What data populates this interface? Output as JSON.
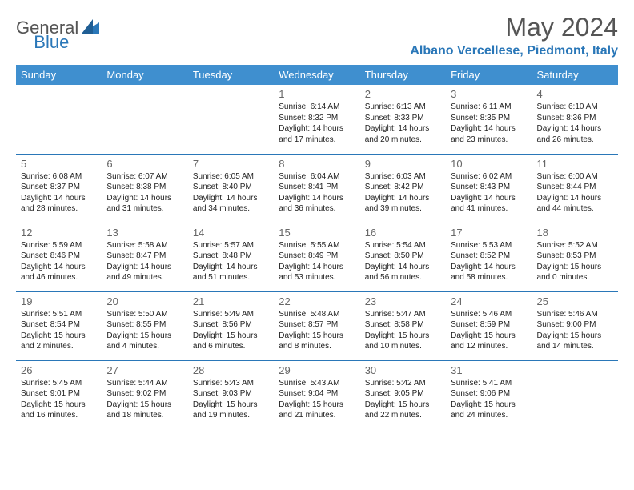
{
  "logo": {
    "word1": "General",
    "word2": "Blue"
  },
  "title": "May 2024",
  "location": "Albano Vercellese, Piedmont, Italy",
  "colors": {
    "header_bg": "#3f8fcf",
    "header_text": "#ffffff",
    "accent": "#2a77b8",
    "title_color": "#555555",
    "body_text": "#222222",
    "daynum_color": "#666666",
    "row_border": "#2a77b8",
    "background": "#ffffff"
  },
  "typography": {
    "month_title_size": 32,
    "location_size": 16,
    "weekday_size": 13,
    "daynum_size": 13,
    "body_size": 10
  },
  "weekdays": [
    "Sunday",
    "Monday",
    "Tuesday",
    "Wednesday",
    "Thursday",
    "Friday",
    "Saturday"
  ],
  "rows": [
    [
      null,
      null,
      null,
      {
        "n": "1",
        "sr": "6:14 AM",
        "ss": "8:32 PM",
        "dl": "14 hours and 17 minutes."
      },
      {
        "n": "2",
        "sr": "6:13 AM",
        "ss": "8:33 PM",
        "dl": "14 hours and 20 minutes."
      },
      {
        "n": "3",
        "sr": "6:11 AM",
        "ss": "8:35 PM",
        "dl": "14 hours and 23 minutes."
      },
      {
        "n": "4",
        "sr": "6:10 AM",
        "ss": "8:36 PM",
        "dl": "14 hours and 26 minutes."
      }
    ],
    [
      {
        "n": "5",
        "sr": "6:08 AM",
        "ss": "8:37 PM",
        "dl": "14 hours and 28 minutes."
      },
      {
        "n": "6",
        "sr": "6:07 AM",
        "ss": "8:38 PM",
        "dl": "14 hours and 31 minutes."
      },
      {
        "n": "7",
        "sr": "6:05 AM",
        "ss": "8:40 PM",
        "dl": "14 hours and 34 minutes."
      },
      {
        "n": "8",
        "sr": "6:04 AM",
        "ss": "8:41 PM",
        "dl": "14 hours and 36 minutes."
      },
      {
        "n": "9",
        "sr": "6:03 AM",
        "ss": "8:42 PM",
        "dl": "14 hours and 39 minutes."
      },
      {
        "n": "10",
        "sr": "6:02 AM",
        "ss": "8:43 PM",
        "dl": "14 hours and 41 minutes."
      },
      {
        "n": "11",
        "sr": "6:00 AM",
        "ss": "8:44 PM",
        "dl": "14 hours and 44 minutes."
      }
    ],
    [
      {
        "n": "12",
        "sr": "5:59 AM",
        "ss": "8:46 PM",
        "dl": "14 hours and 46 minutes."
      },
      {
        "n": "13",
        "sr": "5:58 AM",
        "ss": "8:47 PM",
        "dl": "14 hours and 49 minutes."
      },
      {
        "n": "14",
        "sr": "5:57 AM",
        "ss": "8:48 PM",
        "dl": "14 hours and 51 minutes."
      },
      {
        "n": "15",
        "sr": "5:55 AM",
        "ss": "8:49 PM",
        "dl": "14 hours and 53 minutes."
      },
      {
        "n": "16",
        "sr": "5:54 AM",
        "ss": "8:50 PM",
        "dl": "14 hours and 56 minutes."
      },
      {
        "n": "17",
        "sr": "5:53 AM",
        "ss": "8:52 PM",
        "dl": "14 hours and 58 minutes."
      },
      {
        "n": "18",
        "sr": "5:52 AM",
        "ss": "8:53 PM",
        "dl": "15 hours and 0 minutes."
      }
    ],
    [
      {
        "n": "19",
        "sr": "5:51 AM",
        "ss": "8:54 PM",
        "dl": "15 hours and 2 minutes."
      },
      {
        "n": "20",
        "sr": "5:50 AM",
        "ss": "8:55 PM",
        "dl": "15 hours and 4 minutes."
      },
      {
        "n": "21",
        "sr": "5:49 AM",
        "ss": "8:56 PM",
        "dl": "15 hours and 6 minutes."
      },
      {
        "n": "22",
        "sr": "5:48 AM",
        "ss": "8:57 PM",
        "dl": "15 hours and 8 minutes."
      },
      {
        "n": "23",
        "sr": "5:47 AM",
        "ss": "8:58 PM",
        "dl": "15 hours and 10 minutes."
      },
      {
        "n": "24",
        "sr": "5:46 AM",
        "ss": "8:59 PM",
        "dl": "15 hours and 12 minutes."
      },
      {
        "n": "25",
        "sr": "5:46 AM",
        "ss": "9:00 PM",
        "dl": "15 hours and 14 minutes."
      }
    ],
    [
      {
        "n": "26",
        "sr": "5:45 AM",
        "ss": "9:01 PM",
        "dl": "15 hours and 16 minutes."
      },
      {
        "n": "27",
        "sr": "5:44 AM",
        "ss": "9:02 PM",
        "dl": "15 hours and 18 minutes."
      },
      {
        "n": "28",
        "sr": "5:43 AM",
        "ss": "9:03 PM",
        "dl": "15 hours and 19 minutes."
      },
      {
        "n": "29",
        "sr": "5:43 AM",
        "ss": "9:04 PM",
        "dl": "15 hours and 21 minutes."
      },
      {
        "n": "30",
        "sr": "5:42 AM",
        "ss": "9:05 PM",
        "dl": "15 hours and 22 minutes."
      },
      {
        "n": "31",
        "sr": "5:41 AM",
        "ss": "9:06 PM",
        "dl": "15 hours and 24 minutes."
      },
      null
    ]
  ],
  "labels": {
    "sunrise": "Sunrise:",
    "sunset": "Sunset:",
    "daylight": "Daylight:"
  }
}
